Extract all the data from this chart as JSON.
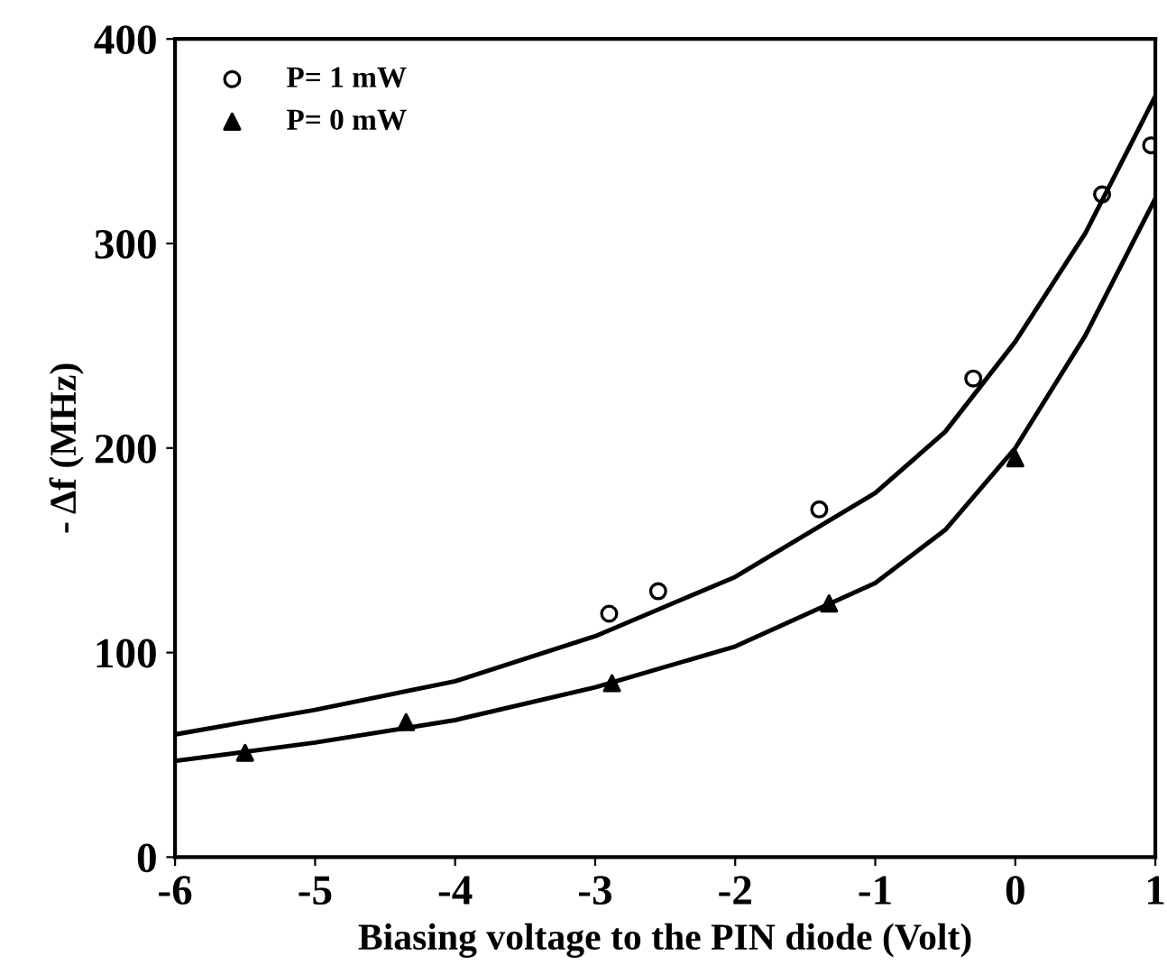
{
  "chart_data": {
    "type": "scatter",
    "xlabel": "Biasing voltage to the PIN diode (Volt)",
    "ylabel": "- Δf (MHz)",
    "xlim": [
      -6,
      1
    ],
    "ylim": [
      0,
      400
    ],
    "xticks": [
      -6,
      -5,
      -4,
      -3,
      -2,
      -1,
      0,
      1
    ],
    "yticks": [
      0,
      100,
      200,
      300,
      400
    ],
    "grid": false,
    "legend": "top left",
    "series": [
      {
        "name": "P= 1 mW",
        "color": "#000000",
        "marker": "circle",
        "x": [
          -2.9,
          -2.55,
          -1.4,
          -0.3,
          0.62,
          0.97
        ],
        "values": [
          119,
          130,
          170,
          234,
          324,
          348
        ]
      },
      {
        "name": "P= 0 mW",
        "color": "#000000",
        "marker": "triangle",
        "x": [
          -5.5,
          -4.35,
          -2.88,
          -1.33,
          0.0
        ],
        "values": [
          51,
          66,
          85,
          124,
          195
        ]
      },
      {
        "type": "line",
        "color": "#000000",
        "marker": "none",
        "x": [
          -6,
          -5,
          -4,
          -3,
          -2,
          -1,
          -0.5,
          0,
          0.5,
          1
        ],
        "values": [
          60,
          72,
          86,
          108,
          137,
          178,
          208,
          252,
          305,
          372
        ]
      },
      {
        "type": "line",
        "color": "#000000",
        "marker": "none",
        "x": [
          -6,
          -5,
          -4,
          -3,
          -2,
          -1,
          -0.5,
          0,
          0.5,
          1
        ],
        "values": [
          47,
          56,
          67,
          83,
          103,
          134,
          160,
          200,
          255,
          322
        ]
      }
    ]
  }
}
